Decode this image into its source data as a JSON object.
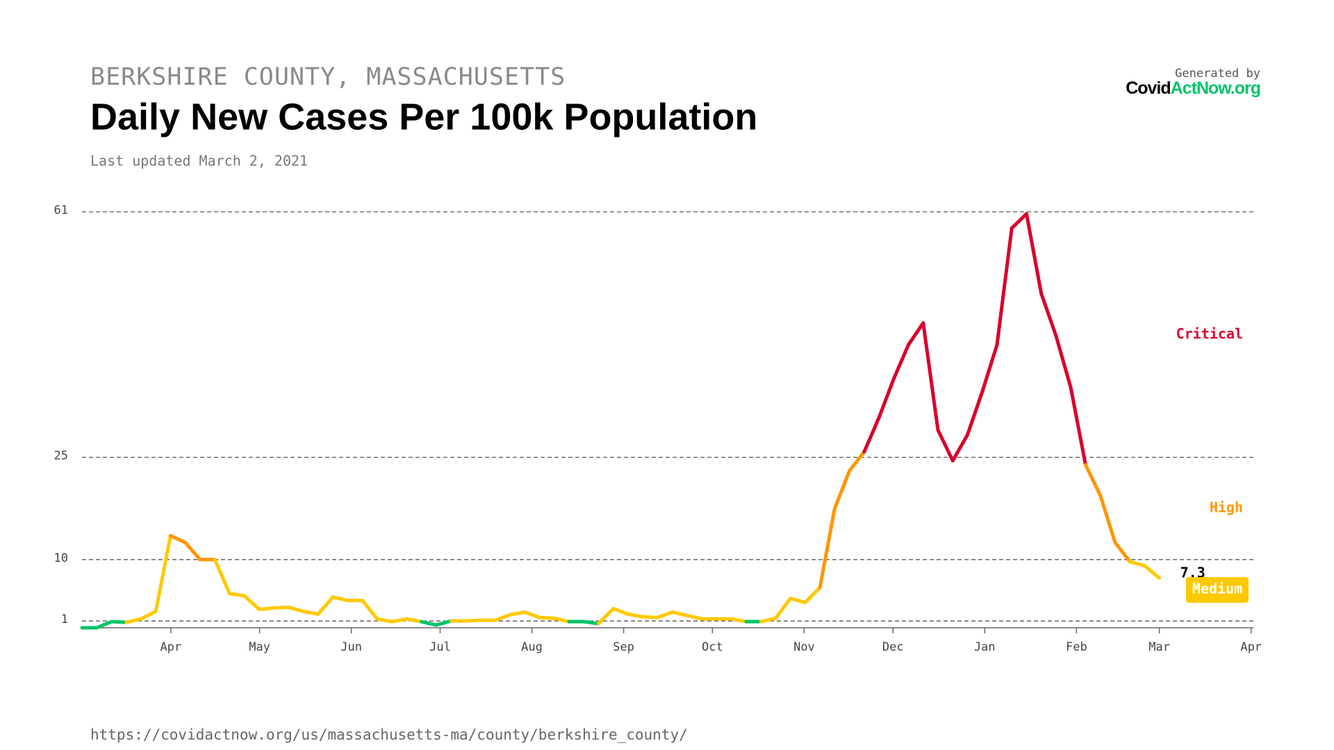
{
  "chart_data": {
    "type": "line",
    "region": "BERKSHIRE COUNTY, MASSACHUSETTS",
    "title": "Daily New Cases Per 100k Population",
    "updated": "Last updated March 2, 2021",
    "generated_by": "Generated by",
    "brand": [
      "Covid",
      "ActNow.org"
    ],
    "url": "https://covidactnow.org/us/massachusetts-ma/county/berkshire_county/",
    "x_labels": [
      "Apr",
      "May",
      "Jun",
      "Jul",
      "Aug",
      "Sep",
      "Oct",
      "Nov",
      "Dec",
      "Jan",
      "Feb",
      "Mar",
      "Apr"
    ],
    "ylim": [
      0,
      61
    ],
    "yticks": [
      1,
      10,
      25,
      61
    ],
    "grid": true,
    "levels": [
      {
        "name": "Critical",
        "color": "#d9002c",
        "min": 25
      },
      {
        "name": "High",
        "color": "#ff9600",
        "min": 10
      },
      {
        "name": "Medium",
        "color": "#ffc900",
        "min": 1
      },
      {
        "color": "#00c46a",
        "min": 0
      }
    ],
    "series": [
      {
        "values": [
          0,
          0,
          0.9,
          0.8,
          1.3,
          2.4,
          13.5,
          12.5,
          10,
          10,
          5,
          4.7,
          2.7,
          2.9,
          3,
          2.4,
          2,
          4.5,
          4,
          4,
          1.3,
          0.9,
          1.3,
          0.9,
          0.4,
          1,
          1,
          1.1,
          1.1,
          1.9,
          2.3,
          1.5,
          1.4,
          0.9,
          0.9,
          0.6,
          2.8,
          2,
          1.6,
          1.5,
          2.3,
          1.8,
          1.3,
          1.3,
          1.3,
          0.9,
          0.9,
          1.4,
          4.3,
          3.7,
          5.9,
          17.5,
          23,
          25.8,
          30.8,
          36.5,
          41.5,
          44.7,
          29,
          24.5,
          28.3,
          34.6,
          41.5,
          58.6,
          60.7,
          49,
          42.8,
          35.2,
          23.9,
          19.4,
          12.5,
          9.7,
          9.1,
          7.3
        ]
      }
    ]
  }
}
